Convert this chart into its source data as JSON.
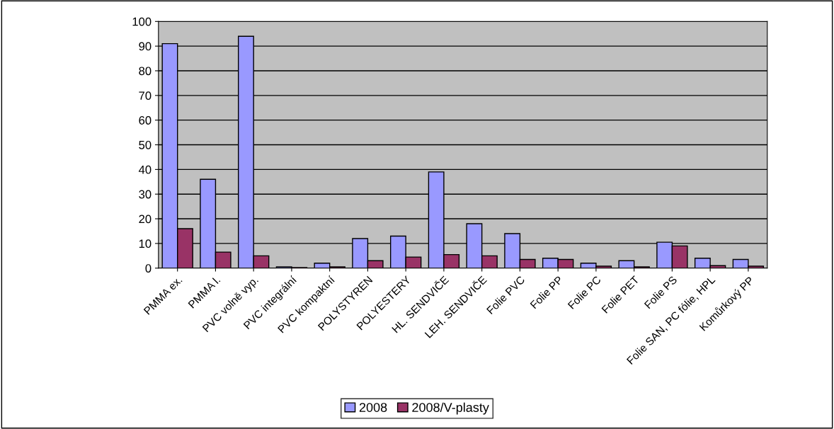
{
  "chart_data": {
    "type": "bar",
    "categories": [
      "PMMA ex.",
      "PMMA l.",
      "PVC volně vyp.",
      "PVC integrální",
      "PVC kompaktní",
      "POLYSTYREN",
      "POLYESTERY",
      "HL. SENDVIČE",
      "LEH. SENDVIČE",
      "Folie PVC",
      "Folie PP",
      "Folie PC",
      "Folie PET",
      "Folie PS",
      "Folie SAN, PC fólie, HPL",
      "Komůrkový PP"
    ],
    "series": [
      {
        "name": "2008",
        "color": "#9999ff",
        "values": [
          91,
          36,
          94,
          0.5,
          2,
          12,
          13,
          39,
          18,
          14,
          4,
          2,
          3,
          10.5,
          4,
          3.5
        ]
      },
      {
        "name": "2008/V-plasty",
        "color": "#993366",
        "values": [
          16,
          6.5,
          5,
          0.2,
          0.5,
          3,
          4.5,
          5.5,
          5,
          3.5,
          3.5,
          0.8,
          0.5,
          9,
          1,
          0.8
        ]
      }
    ],
    "ylim": [
      0,
      100
    ],
    "yticks": [
      0,
      10,
      20,
      30,
      40,
      50,
      60,
      70,
      80,
      90,
      100
    ],
    "grid": "y",
    "legend": "bottom"
  }
}
